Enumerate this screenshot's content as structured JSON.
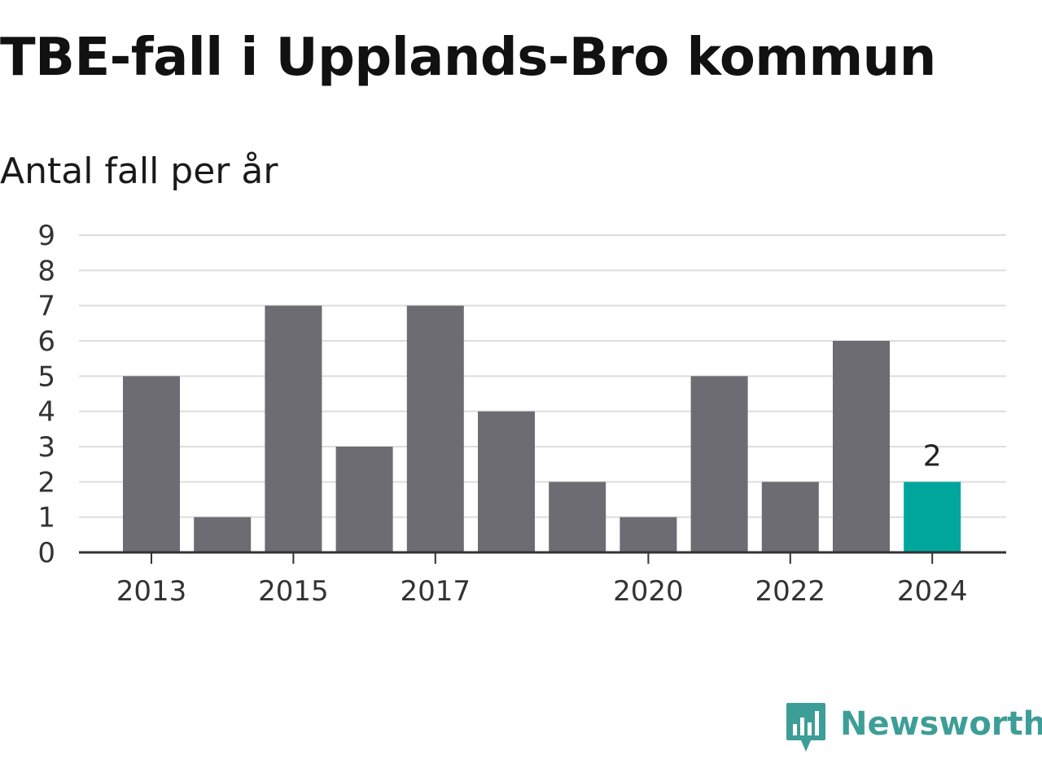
{
  "title": "TBE-fall i Upplands-Bro kommun",
  "subtitle": "Antal fall per år",
  "brand": {
    "name": "Newsworthy",
    "color": "#3d9e97"
  },
  "colors": {
    "bar": "#6d6c72",
    "highlight": "#00a69c",
    "grid": "#dddddd",
    "axis": "#333333"
  },
  "chart_data": {
    "type": "bar",
    "categories": [
      2013,
      2014,
      2015,
      2016,
      2017,
      2018,
      2019,
      2020,
      2021,
      2022,
      2023,
      2024
    ],
    "values": [
      5,
      1,
      7,
      3,
      7,
      4,
      2,
      1,
      5,
      2,
      6,
      2
    ],
    "x_tick_labels": [
      "2013",
      "2015",
      "2017",
      "2020",
      "2022",
      "2024"
    ],
    "y_ticks": [
      0,
      1,
      2,
      3,
      4,
      5,
      6,
      7,
      8,
      9
    ],
    "ylim": [
      0,
      9
    ],
    "highlight": {
      "category": 2024,
      "label": "2"
    },
    "grid": true,
    "legend": "none"
  }
}
